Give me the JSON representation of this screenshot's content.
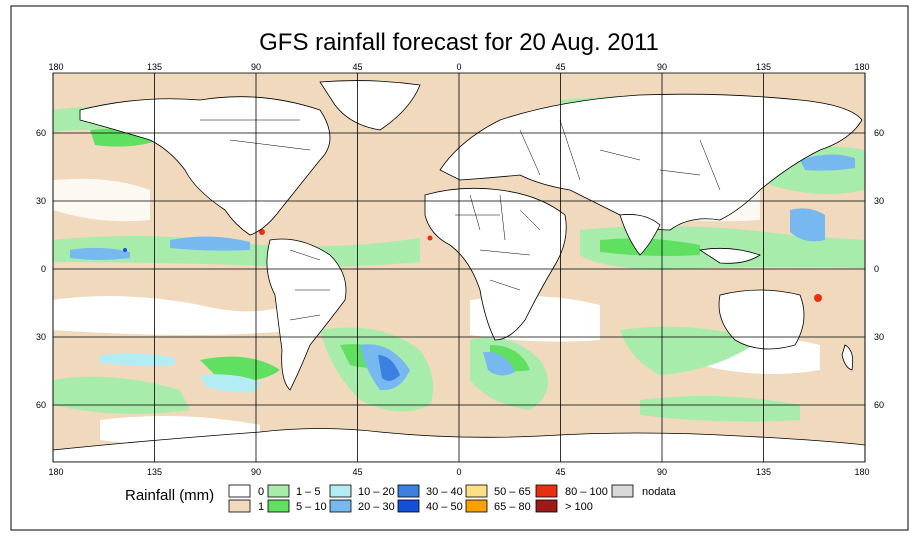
{
  "title": "GFS rainfall forecast for 20 Aug. 2011",
  "axes": {
    "lon_ticks": [
      "180",
      "135",
      "90",
      "45",
      "0",
      "45",
      "90",
      "135",
      "180"
    ],
    "lat_ticks_left": [
      "60",
      "30",
      "0",
      "30",
      "60"
    ],
    "lat_ticks_right": [
      "60",
      "30",
      "0",
      "30",
      "60"
    ]
  },
  "legend": {
    "label": "Rainfall (mm)",
    "items": [
      {
        "label": "0",
        "color": "#ffffff"
      },
      {
        "label": "1",
        "color": "#f0d9bd"
      },
      {
        "label": "1 – 5",
        "color": "#a8ecab"
      },
      {
        "label": "5 – 10",
        "color": "#60e060"
      },
      {
        "label": "10 – 20",
        "color": "#b4ecf4"
      },
      {
        "label": "20 – 30",
        "color": "#78b8f0"
      },
      {
        "label": "30 – 40",
        "color": "#3c80e0"
      },
      {
        "label": "40 – 50",
        "color": "#1450d8"
      },
      {
        "label": "50 – 65",
        "color": "#fce088"
      },
      {
        "label": "65 – 80",
        "color": "#f8a000"
      },
      {
        "label": "80 – 100",
        "color": "#e83010"
      },
      {
        "label": "> 100",
        "color": "#a01818"
      },
      {
        "label": "nodata",
        "color": "#d9d9d9"
      }
    ]
  },
  "colors": {
    "ocean_background": "#f0d9bd",
    "land": "#ffffff",
    "grid": "#000000",
    "light_rain": "#a8ecab",
    "moderate_rain": "#60e060",
    "heavy_blue": "#78b8f0",
    "very_heavy": "#1450d8",
    "extreme": "#e83010"
  }
}
